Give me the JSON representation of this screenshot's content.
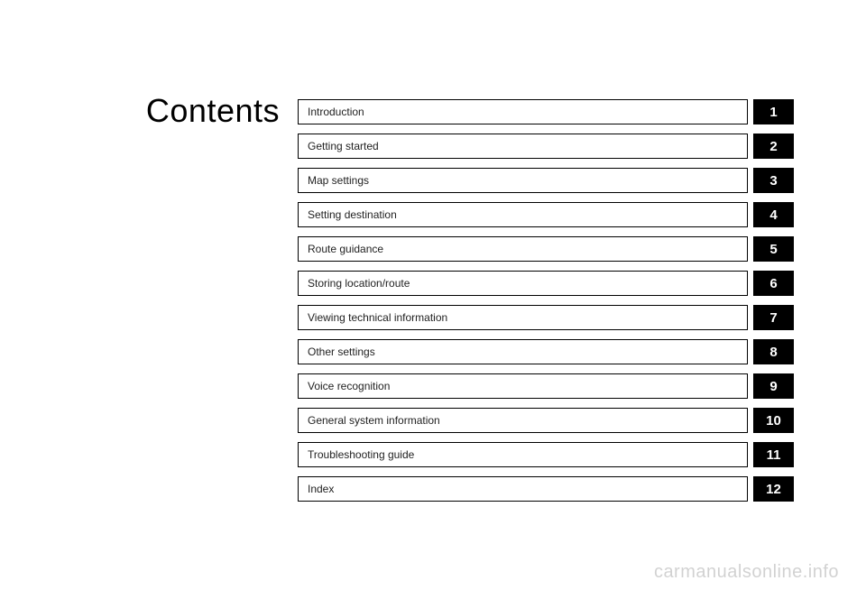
{
  "heading": "Contents",
  "toc": [
    {
      "label": "Introduction",
      "num": "1"
    },
    {
      "label": "Getting started",
      "num": "2"
    },
    {
      "label": "Map settings",
      "num": "3"
    },
    {
      "label": "Setting destination",
      "num": "4"
    },
    {
      "label": "Route guidance",
      "num": "5"
    },
    {
      "label": "Storing location/route",
      "num": "6"
    },
    {
      "label": "Viewing technical information",
      "num": "7"
    },
    {
      "label": "Other settings",
      "num": "8"
    },
    {
      "label": "Voice recognition",
      "num": "9"
    },
    {
      "label": "General system information",
      "num": "10"
    },
    {
      "label": "Troubleshooting guide",
      "num": "11"
    },
    {
      "label": "Index",
      "num": "12"
    }
  ],
  "watermark": "carmanualsonline.info",
  "style": {
    "page_bg": "#ffffff",
    "heading_fontsize": 36,
    "heading_color": "#000000",
    "item_border": "#000000",
    "item_text_color": "#222222",
    "item_fontsize": 12,
    "num_bg": "#000000",
    "num_text": "#ffffff",
    "num_fontsize": 15,
    "row_gap": 10,
    "watermark_color": "rgba(0,0,0,0.18)",
    "watermark_fontsize": 20
  }
}
